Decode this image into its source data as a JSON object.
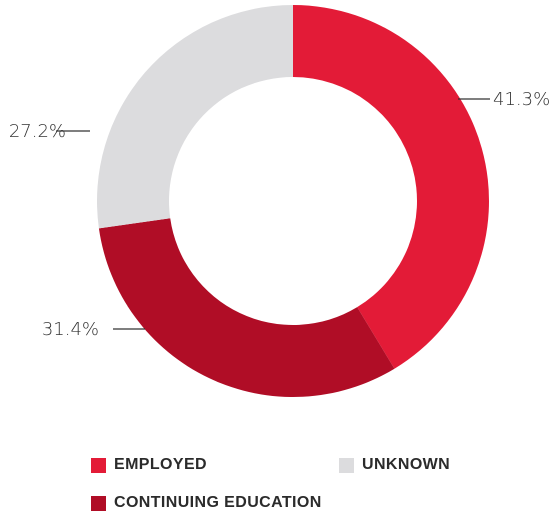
{
  "chart_data": {
    "type": "pie",
    "style": "donut",
    "categories": [
      "EMPLOYED",
      "CONTINUING EDUCATION",
      "UNKNOWN"
    ],
    "values": [
      41.3,
      31.4,
      27.2
    ],
    "value_labels": [
      "41.3%",
      "31.4%",
      "27.2%"
    ],
    "colors": [
      "#e31b37",
      "#b00d26",
      "#dcdcde"
    ],
    "legend": {
      "placement": "bottom",
      "items": [
        {
          "label": "EMPLOYED",
          "color": "#e31b37"
        },
        {
          "label": "UNKNOWN",
          "color": "#dcdcde"
        },
        {
          "label": "CONTINUING EDUCATION",
          "color": "#b00d26"
        }
      ]
    }
  }
}
